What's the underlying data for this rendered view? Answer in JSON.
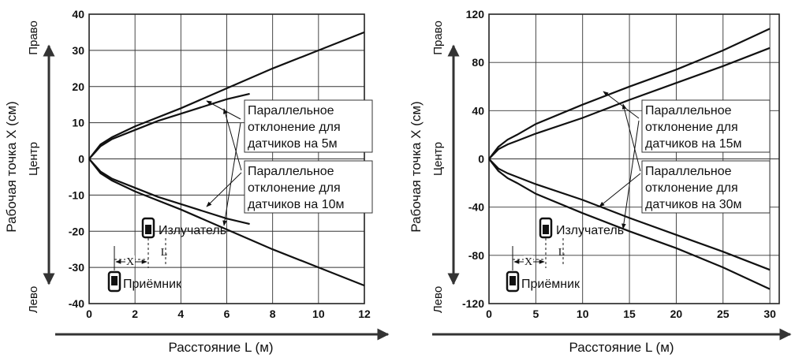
{
  "chart_data": [
    {
      "type": "line",
      "xlabel": "Расстояние L (м)",
      "ylabel": "Рабочая точка X (см)",
      "side_labels": {
        "top": "Право",
        "middle": "Центр",
        "bottom": "Лево"
      },
      "xlim": [
        0,
        12
      ],
      "ylim": [
        -40,
        40
      ],
      "x_ticks": [
        "0",
        "2",
        "4",
        "6",
        "8",
        "10",
        "12"
      ],
      "y_ticks": [
        "40",
        "30",
        "20",
        "10",
        "0",
        "-10",
        "-20",
        "-30",
        "-40"
      ],
      "grid": true,
      "series": [
        {
          "name": "Параллельное отклонение для датчиков на 5м (+)",
          "x": [
            0,
            0.5,
            1,
            2,
            3,
            4,
            5,
            6,
            7
          ],
          "y": [
            0,
            3.5,
            5.5,
            8,
            10.5,
            12.5,
            14.5,
            16.5,
            18
          ]
        },
        {
          "name": "Параллельное отклонение для датчиков на 5м (-)",
          "x": [
            0,
            0.5,
            1,
            2,
            3,
            4,
            5,
            6,
            7
          ],
          "y": [
            0,
            -3.5,
            -5.5,
            -8,
            -10.5,
            -12.5,
            -14.5,
            -16.5,
            -18
          ]
        },
        {
          "name": "Параллельное отклонение для датчиков на 10м (+)",
          "x": [
            0,
            0.5,
            1,
            2,
            4,
            6,
            8,
            10,
            12
          ],
          "y": [
            0,
            4,
            6,
            9,
            14,
            19.5,
            25,
            30,
            35
          ]
        },
        {
          "name": "Параллельное отклонение для датчиков на 10м (-)",
          "x": [
            0,
            0.5,
            1,
            2,
            4,
            6,
            8,
            10,
            12
          ],
          "y": [
            0,
            -4,
            -6,
            -9,
            -14,
            -19.5,
            -25,
            -30,
            -35
          ]
        }
      ],
      "annotations": [
        {
          "lines": [
            "Параллельное",
            "отклонение для",
            "датчиков на 5м"
          ]
        },
        {
          "lines": [
            "Параллельное",
            "отклонение для",
            "датчиков на 10м"
          ]
        }
      ],
      "inset": {
        "emitter": "Излучатель",
        "receiver": "Приёмник",
        "x_mark": "X",
        "l_mark": "L"
      }
    },
    {
      "type": "line",
      "xlabel": "Расстояние L (м)",
      "ylabel": "Рабочая точка X (см)",
      "side_labels": {
        "top": "Право",
        "middle": "Центр",
        "bottom": "Лево"
      },
      "xlim": [
        0,
        31
      ],
      "ylim": [
        -120,
        120
      ],
      "x_ticks": [
        "0",
        "5",
        "10",
        "15",
        "20",
        "25",
        "30"
      ],
      "y_ticks": [
        "120",
        "80",
        "40",
        "0",
        "-40",
        "-80",
        "-120"
      ],
      "grid": true,
      "series": [
        {
          "name": "Параллельное отклонение для датчиков на 15м (+)",
          "x": [
            0,
            1,
            2,
            3,
            5,
            10,
            15,
            20,
            25,
            30
          ],
          "y": [
            0,
            8,
            12,
            15,
            21,
            34,
            49,
            63,
            77,
            92
          ]
        },
        {
          "name": "Параллельное отклонение для датчиков на 15м (-)",
          "x": [
            0,
            1,
            2,
            3,
            5,
            10,
            15,
            20,
            25,
            30
          ],
          "y": [
            0,
            -8,
            -12,
            -15,
            -21,
            -34,
            -49,
            -63,
            -77,
            -92
          ]
        },
        {
          "name": "Параллельное отклонение для датчиков на 30м (+)",
          "x": [
            0,
            1,
            2,
            3,
            5,
            10,
            15,
            20,
            25,
            30
          ],
          "y": [
            0,
            10,
            16,
            20,
            29,
            45,
            60,
            74,
            90,
            108
          ]
        },
        {
          "name": "Параллельное отклонение для датчиков на 30м (-)",
          "x": [
            0,
            1,
            2,
            3,
            5,
            10,
            15,
            20,
            25,
            30
          ],
          "y": [
            0,
            -10,
            -16,
            -20,
            -29,
            -45,
            -60,
            -74,
            -90,
            -108
          ]
        }
      ],
      "annotations": [
        {
          "lines": [
            "Параллельное",
            "отклонение для",
            "датчиков на 15м"
          ]
        },
        {
          "lines": [
            "Параллельное",
            "отклонение для",
            "датчиков на 30м"
          ]
        }
      ],
      "inset": {
        "emitter": "Излучатель",
        "receiver": "Приёмник",
        "x_mark": "X",
        "l_mark": "L"
      }
    }
  ]
}
